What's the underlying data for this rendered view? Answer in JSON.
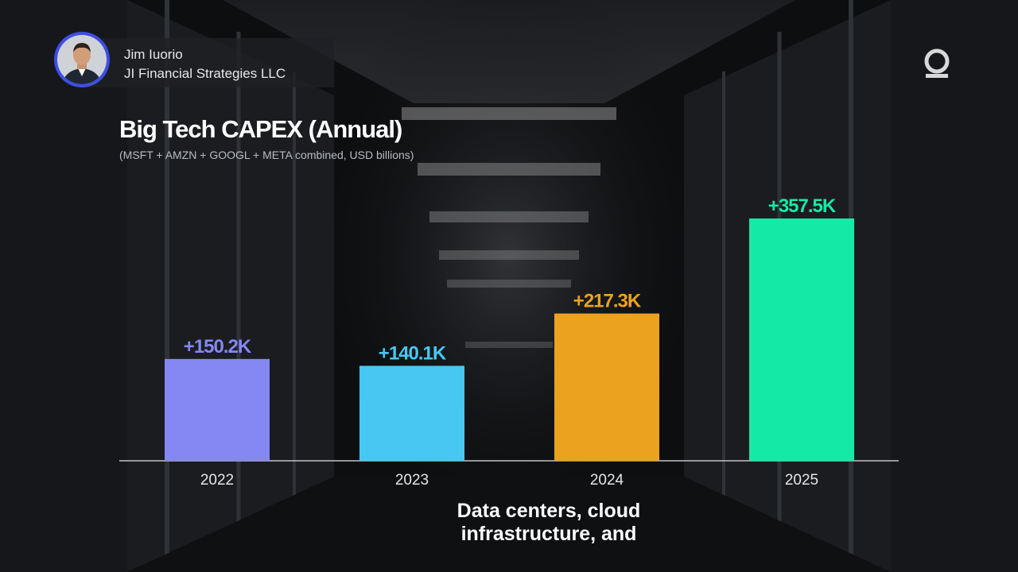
{
  "speaker": {
    "name": "Jim Iuorio",
    "organization": "JI Financial Strategies LLC"
  },
  "branding": {
    "logo_icon": "q-logo-icon"
  },
  "chart_data": {
    "type": "bar",
    "title": "Big Tech CAPEX (Annual)",
    "subtitle": "(MSFT + AMZN + GOOGL + META combined, USD billions)",
    "categories": [
      "2022",
      "2023",
      "2024",
      "2025"
    ],
    "values": [
      150.2,
      140.1,
      217.3,
      357.5
    ],
    "data_labels": [
      "+150.2K",
      "+140.1K",
      "+217.3K",
      "+357.5K"
    ],
    "colors": [
      "#8587f2",
      "#46c8f2",
      "#eba21e",
      "#14eaa5"
    ],
    "ylim": [
      0,
      357.5
    ],
    "grid": false,
    "legend": "none"
  },
  "captions": {
    "line1": "Data centers, cloud",
    "line2": "infrastructure, and"
  }
}
